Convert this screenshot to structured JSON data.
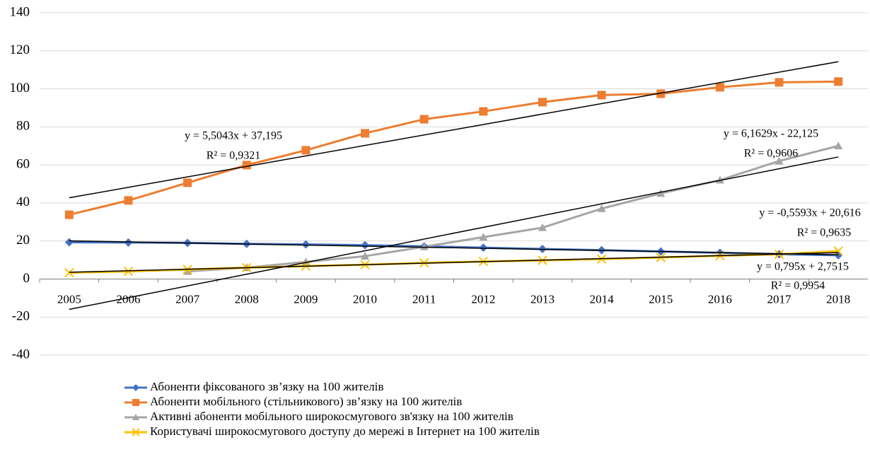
{
  "chart_data": {
    "type": "line",
    "categories": [
      "2005",
      "2006",
      "2007",
      "2008",
      "2009",
      "2010",
      "2011",
      "2012",
      "2013",
      "2014",
      "2015",
      "2016",
      "2017",
      "2018"
    ],
    "series": [
      {
        "name": "Абоненти фіксованого зв’язку на 100 жителів",
        "color": "#4472c4",
        "marker": "diamond",
        "values": [
          19.3,
          19.2,
          19,
          18.5,
          18.2,
          17.8,
          17.2,
          16.5,
          15.8,
          15.2,
          14.5,
          13.8,
          13,
          12.5
        ]
      },
      {
        "name": "Абоненти мобільного (стільникового) зв’язку на 100 жителів",
        "color": "#ed7d31",
        "marker": "square",
        "values": [
          33.8,
          41.3,
          50.6,
          59.9,
          67.7,
          76.6,
          84,
          88.1,
          93,
          96.7,
          97.4,
          100.8,
          103.4,
          103.8
        ]
      },
      {
        "name": "Активні абоненти мобільного широкосмугового зв'язку на 100 жителів",
        "color": "#a5a5a5",
        "marker": "triangle",
        "values": [
          null,
          null,
          4,
          6,
          9,
          12,
          17,
          22,
          27,
          37,
          45,
          52,
          62,
          70
        ]
      },
      {
        "name": "Користувачі широкосмугового доступу до мережі в Інтернет на 100 жителів",
        "color": "#ffc000",
        "marker": "x",
        "values": [
          3.3,
          4,
          5,
          6,
          6.8,
          7.5,
          8.5,
          9.2,
          9.8,
          10.5,
          11.3,
          12.2,
          13,
          14.7
        ]
      }
    ],
    "trendlines": [
      {
        "series": 1,
        "slope": 5.5043,
        "intercept": 37.195,
        "equation": "y = 5,5043x + 37,195",
        "r2": "R² = 0,9321"
      },
      {
        "series": 2,
        "slope": 6.1629,
        "intercept": -22.125,
        "equation": "y = 6,1629x - 22,125",
        "r2": "R² = 0,9606"
      },
      {
        "series": 0,
        "slope": -0.5593,
        "intercept": 20.616,
        "equation": "y = -0,5593x + 20,616",
        "r2": "R² = 0,9635"
      },
      {
        "series": 3,
        "slope": 0.795,
        "intercept": 2.7515,
        "equation": "y = 0,795x + 2,7515",
        "r2": "R² = 0,9954"
      }
    ],
    "trend_color": "#000000",
    "ylim": [
      -40,
      140
    ],
    "yticks": [
      -40,
      -20,
      0,
      20,
      40,
      60,
      80,
      100,
      120,
      140
    ],
    "grid": true,
    "legend": "bottom"
  }
}
